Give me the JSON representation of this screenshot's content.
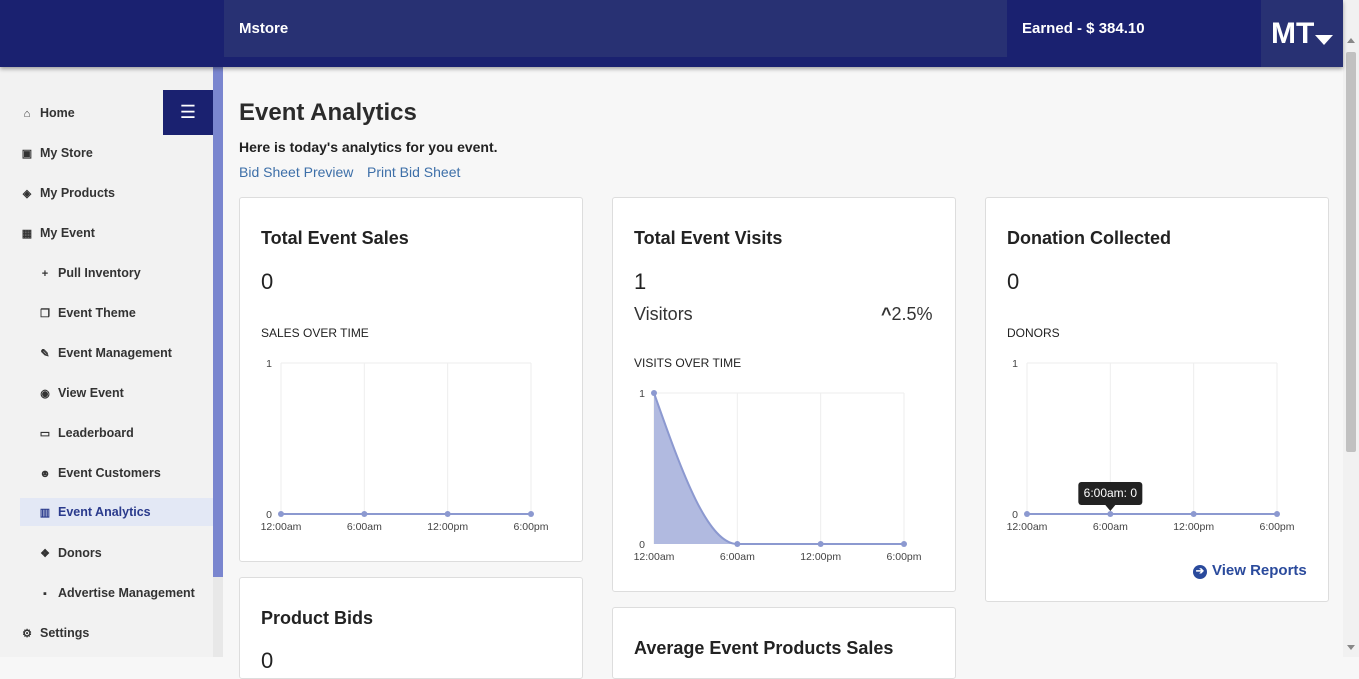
{
  "header": {
    "store_name": "Mstore",
    "earned": "Earned - $ 384.10",
    "user_initials": "MT"
  },
  "sidebar": {
    "items": [
      {
        "label": "Home",
        "icon": "home-icon",
        "glyph": "⌂"
      },
      {
        "label": "My Store",
        "icon": "store-icon",
        "glyph": "▣"
      },
      {
        "label": "My Products",
        "icon": "layers-icon",
        "glyph": "◈"
      },
      {
        "label": "My Event",
        "icon": "calendar-icon",
        "glyph": "▦"
      },
      {
        "label": "Pull Inventory",
        "icon": "plus-icon",
        "glyph": "+"
      },
      {
        "label": "Event Theme",
        "icon": "clone-icon",
        "glyph": "❐"
      },
      {
        "label": "Event Management",
        "icon": "edit-icon",
        "glyph": "✎"
      },
      {
        "label": "View Event",
        "icon": "eye-icon",
        "glyph": "◉"
      },
      {
        "label": "Leaderboard",
        "icon": "chalkboard-icon",
        "glyph": "▭"
      },
      {
        "label": "Event Customers",
        "icon": "users-icon",
        "glyph": "☻"
      },
      {
        "label": "Event Analytics",
        "icon": "chart-icon",
        "glyph": "▥"
      },
      {
        "label": "Donors",
        "icon": "donate-icon",
        "glyph": "❖"
      },
      {
        "label": "Advertise Management",
        "icon": "ad-icon",
        "glyph": "▪"
      },
      {
        "label": "Settings",
        "icon": "gear-icon",
        "glyph": "⚙"
      }
    ]
  },
  "main": {
    "title": "Event Analytics",
    "subtitle": "Here is today's analytics for you event.",
    "links": [
      "Bid Sheet Preview",
      "Print Bid Sheet"
    ]
  },
  "cards": {
    "sales": {
      "title": "Total Event Sales",
      "value": "0",
      "chart_label": "SALES OVER TIME"
    },
    "visits": {
      "title": "Total Event Visits",
      "value": "1",
      "visitors_label": "Visitors",
      "change": "2.5%",
      "chart_label": "VISITS OVER TIME"
    },
    "donation": {
      "title": "Donation Collected",
      "value": "0",
      "chart_label": "DONORS",
      "tooltip": "6:00am: 0",
      "view_reports": "View Reports"
    },
    "bids": {
      "title": "Product Bids",
      "value": "0"
    },
    "avg": {
      "title": "Average Event Products Sales"
    }
  },
  "chart_data": [
    {
      "type": "line",
      "x": [
        "12:00am",
        "6:00am",
        "12:00pm",
        "6:00pm"
      ],
      "series": [
        {
          "values": [
            0,
            0,
            0,
            0
          ]
        }
      ],
      "ylim": [
        0,
        1
      ],
      "yticks": [
        "0",
        "1"
      ]
    },
    {
      "type": "area",
      "x": [
        "12:00am",
        "6:00am",
        "12:00pm",
        "6:00pm"
      ],
      "series": [
        {
          "values": [
            1,
            0,
            0,
            0
          ]
        }
      ],
      "ylim": [
        0,
        1
      ],
      "yticks": [
        "0",
        "1"
      ]
    },
    {
      "type": "line",
      "x": [
        "12:00am",
        "6:00am",
        "12:00pm",
        "6:00pm"
      ],
      "series": [
        {
          "values": [
            0,
            0,
            0,
            0
          ]
        }
      ],
      "ylim": [
        0,
        1
      ],
      "yticks": [
        "0",
        "1"
      ]
    }
  ],
  "colors": {
    "navy": "#1a2170",
    "accent": "#7a86cf",
    "series": "#8c99d0",
    "area_fill": "#a9b3dd"
  }
}
